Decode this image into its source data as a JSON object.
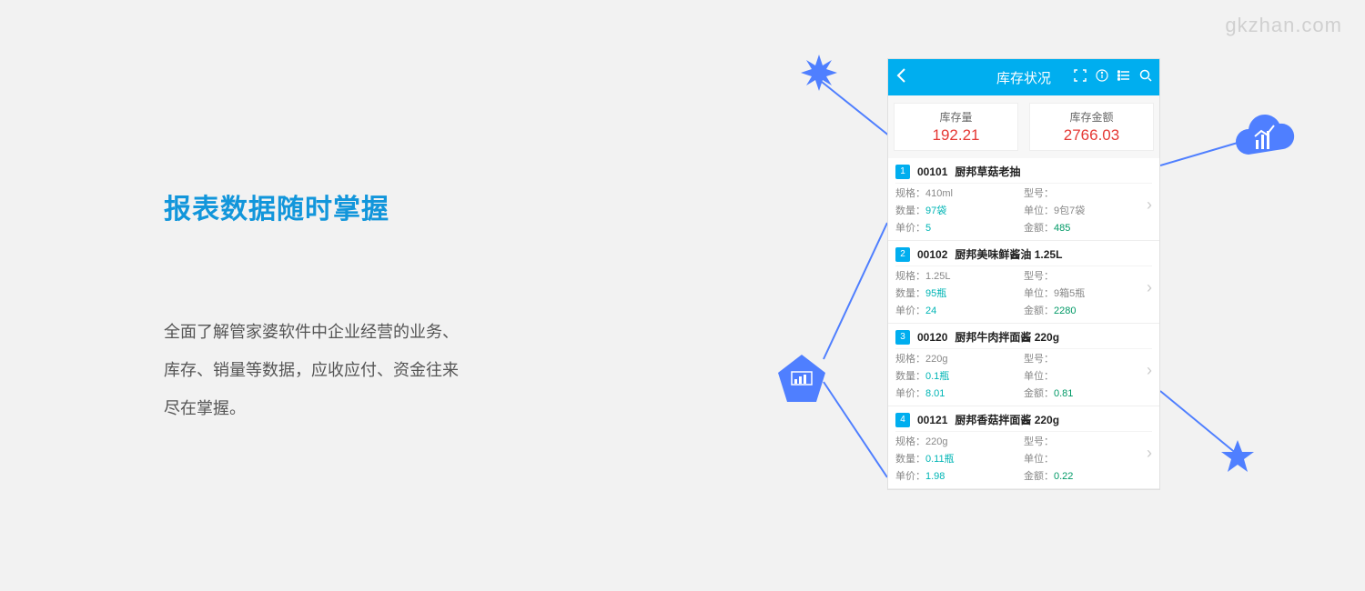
{
  "watermark": "gkzhan.com",
  "headline": "报表数据随时掌握",
  "description_l1": "全面了解管家婆软件中企业经营的业务、",
  "description_l2": "库存、销量等数据，应收应付、资金往来",
  "description_l3": "尽在掌握。",
  "colors": {
    "accent": "#4f7fff",
    "app_header": "#00aeef",
    "value_red": "#e53935",
    "value_teal": "#00b5b5",
    "value_green": "#009966",
    "page_bg": "#f2f2f2"
  },
  "app": {
    "title": "库存状况",
    "summary": [
      {
        "label": "库存量",
        "value": "192.21"
      },
      {
        "label": "库存金额",
        "value": "2766.03"
      }
    ],
    "field_labels": {
      "spec": "规格：",
      "model": "型号：",
      "qty": "数量：",
      "unit": "单位：",
      "price": "单价：",
      "amount": "金额："
    },
    "items": [
      {
        "num": "1",
        "code": "00101",
        "name": "厨邦草菇老抽",
        "spec": "410ml",
        "model": "",
        "qty": "97袋",
        "unit": "9包7袋",
        "price": "5",
        "amount": "485"
      },
      {
        "num": "2",
        "code": "00102",
        "name": "厨邦美味鲜酱油 1.25L",
        "spec": "1.25L",
        "model": "",
        "qty": "95瓶",
        "unit": "9箱5瓶",
        "price": "24",
        "amount": "2280"
      },
      {
        "num": "3",
        "code": "00120",
        "name": "厨邦牛肉拌面酱 220g",
        "spec": "220g",
        "model": "",
        "qty": "0.1瓶",
        "unit": "",
        "price": "8.01",
        "amount": "0.81"
      },
      {
        "num": "4",
        "code": "00121",
        "name": "厨邦香菇拌面酱 220g",
        "spec": "220g",
        "model": "",
        "qty": "0.11瓶",
        "unit": "",
        "price": "1.98",
        "amount": "0.22"
      }
    ]
  }
}
